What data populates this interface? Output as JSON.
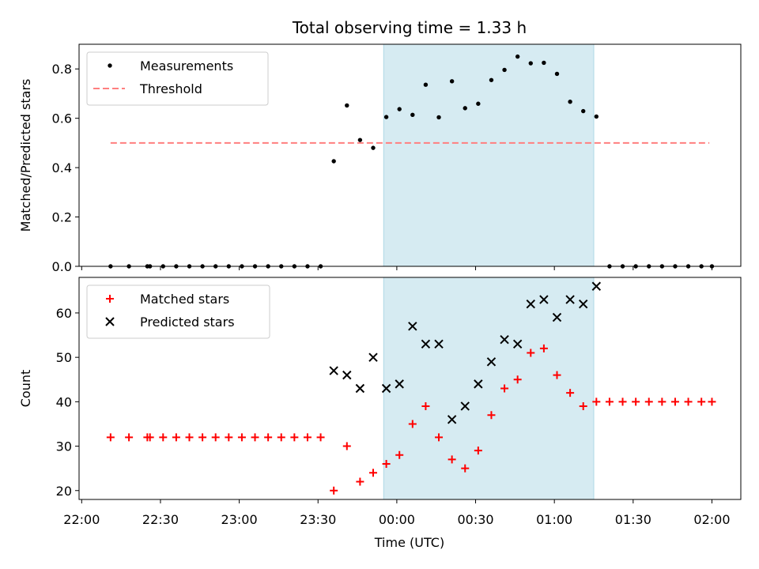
{
  "chart_data": {
    "type": "scatter",
    "title": "Total observing time = 1.33 h",
    "xlabel": "Time (UTC)",
    "x_ticks": [
      "22:00",
      "22:30",
      "23:00",
      "23:30",
      "00:30",
      "01:00",
      "01:30",
      "02:00"
    ],
    "x_tick_positions_min": [
      0,
      30,
      60,
      90,
      150,
      180,
      210,
      240
    ],
    "x_tick_extra": {
      "label": "00:00",
      "minute": 120
    },
    "xlim_min": [
      -1,
      251
    ],
    "shaded_span_min": [
      115,
      195
    ],
    "shaded_color": "#add8e6",
    "panels": [
      {
        "name": "ratio",
        "ylabel": "Matched/Predicted stars",
        "ylim": [
          0,
          0.9
        ],
        "yticks": [
          "0.0",
          "0.2",
          "0.4",
          "0.6",
          "0.8"
        ],
        "ytick_values": [
          0,
          0.2,
          0.4,
          0.6,
          0.8
        ],
        "legend": {
          "position": "top-left",
          "entries": [
            "Measurements",
            "Threshold"
          ]
        },
        "threshold": {
          "name": "Threshold",
          "value": 0.5,
          "x_range_min": [
            11,
            239
          ],
          "color": "#ff7f7f"
        },
        "series": [
          {
            "name": "Measurements",
            "marker": "dot",
            "color": "#000000",
            "x": [
              11,
              18,
              25,
              26,
              31,
              36,
              41,
              46,
              51,
              56,
              61,
              66,
              71,
              76,
              81,
              86,
              91,
              96,
              101,
              106,
              111,
              116,
              121,
              126,
              131,
              136,
              141,
              146,
              151,
              156,
              161,
              166,
              171,
              176,
              181,
              186,
              191,
              196,
              201,
              206,
              211,
              216,
              221,
              226,
              231,
              236,
              240
            ],
            "y": [
              0,
              0,
              0,
              0,
              0,
              0,
              0,
              0,
              0,
              0,
              0,
              0,
              0,
              0,
              0,
              0,
              0,
              0.426,
              0.652,
              0.512,
              0.48,
              0.605,
              0.637,
              0.614,
              0.736,
              0.604,
              0.75,
              0.641,
              0.659,
              0.755,
              0.796,
              0.85,
              0.823,
              0.825,
              0.78,
              0.667,
              0.629,
              0.607,
              0,
              0,
              0,
              0,
              0,
              0,
              0,
              0,
              0
            ]
          }
        ]
      },
      {
        "name": "counts",
        "ylabel": "Count",
        "ylim": [
          18,
          68
        ],
        "yticks": [
          "20",
          "30",
          "40",
          "50",
          "60"
        ],
        "ytick_values": [
          20,
          30,
          40,
          50,
          60
        ],
        "legend": {
          "position": "top-left",
          "entries": [
            "Matched stars",
            "Predicted stars"
          ]
        },
        "series": [
          {
            "name": "Matched stars",
            "marker": "plus",
            "color": "#ff0000",
            "x": [
              11,
              18,
              25,
              26,
              31,
              36,
              41,
              46,
              51,
              56,
              61,
              66,
              71,
              76,
              81,
              86,
              91,
              96,
              101,
              106,
              111,
              116,
              121,
              126,
              131,
              136,
              141,
              146,
              151,
              156,
              161,
              166,
              171,
              176,
              181,
              186,
              191,
              196,
              201,
              206,
              211,
              216,
              221,
              226,
              231,
              236,
              240
            ],
            "y": [
              32,
              32,
              32,
              32,
              32,
              32,
              32,
              32,
              32,
              32,
              32,
              32,
              32,
              32,
              32,
              32,
              32,
              20,
              30,
              22,
              24,
              26,
              28,
              35,
              39,
              32,
              27,
              25,
              29,
              37,
              43,
              45,
              51,
              52,
              46,
              42,
              39,
              40,
              40,
              40,
              40,
              40,
              40,
              40,
              40,
              40,
              40
            ]
          },
          {
            "name": "Predicted stars",
            "marker": "x",
            "color": "#000000",
            "x": [
              96,
              101,
              106,
              111,
              116,
              121,
              126,
              131,
              136,
              141,
              146,
              151,
              156,
              161,
              166,
              171,
              176,
              181,
              186,
              191,
              196
            ],
            "y": [
              47,
              46,
              43,
              50,
              43,
              44,
              57,
              53,
              53,
              36,
              39,
              44,
              49,
              54,
              53,
              62,
              63,
              59,
              63,
              62,
              66
            ]
          }
        ]
      }
    ]
  }
}
